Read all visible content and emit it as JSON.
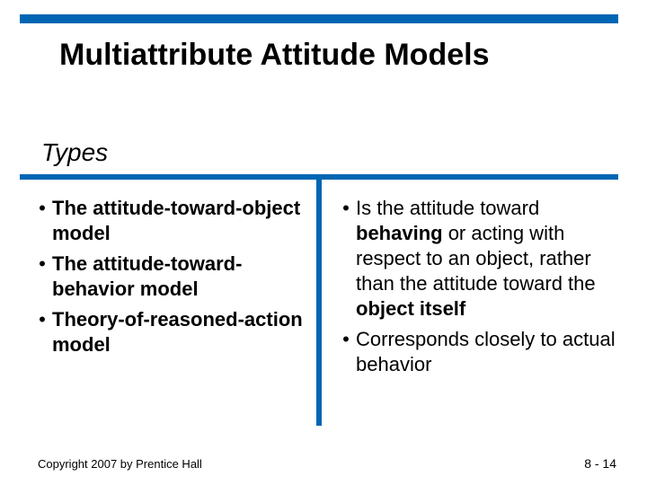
{
  "colors": {
    "accent": "#0066b3",
    "text": "#000000",
    "background": "#ffffff"
  },
  "title": "Multiattribute Attitude Models",
  "subtitle": "Types",
  "left_bullets": [
    "The attitude-toward-object model",
    "The attitude-toward-behavior model",
    "Theory-of-reasoned-action model"
  ],
  "right_bullets_html": [
    "Is the attitude toward <b>behaving</b> or acting with respect to an object, rather than the attitude toward the <b>object itself</b>",
    "Corresponds closely to actual behavior"
  ],
  "footer": {
    "copyright": "Copyright 2007 by Prentice Hall",
    "page": "8 - 14"
  },
  "typography": {
    "title_fontsize": 34,
    "subtitle_fontsize": 28,
    "bullet_fontsize": 22,
    "footer_fontsize": 13
  }
}
